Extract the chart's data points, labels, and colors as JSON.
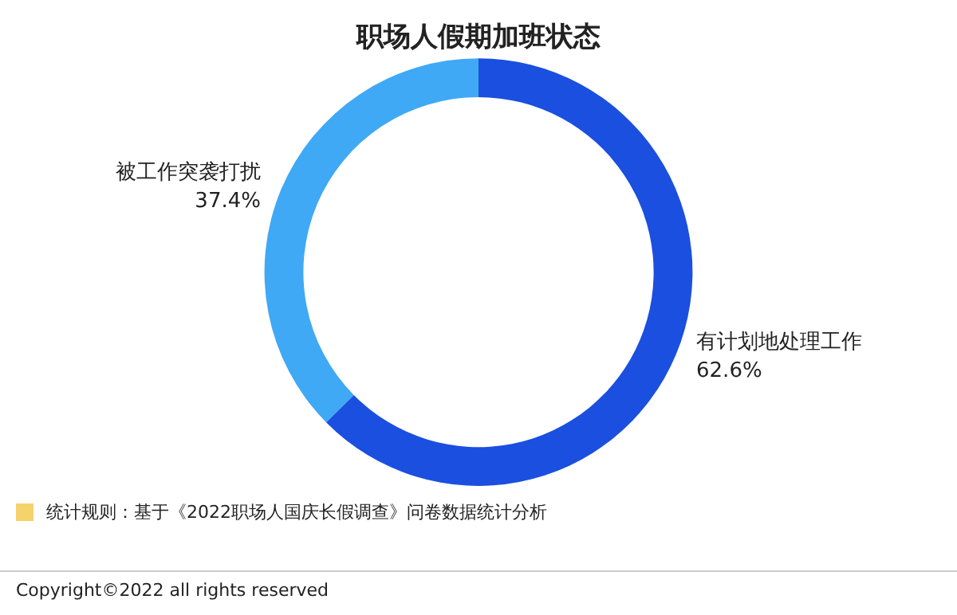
{
  "chart_data": {
    "type": "donut",
    "title": "职场人假期加班状态",
    "categories": [
      "被工作突袭打扰",
      "有计划地处理工作"
    ],
    "values": [
      37.4,
      62.6
    ],
    "colors": [
      "#3fa9f5",
      "#1a4fe0"
    ],
    "value_labels": [
      "37.4%",
      "62.6%"
    ],
    "legend": false,
    "annotations": [
      "统计规则：基于《2022职场人国庆长假调查》问卷数据统计分析",
      "Copyright©2022 all rights reserved"
    ]
  }
}
